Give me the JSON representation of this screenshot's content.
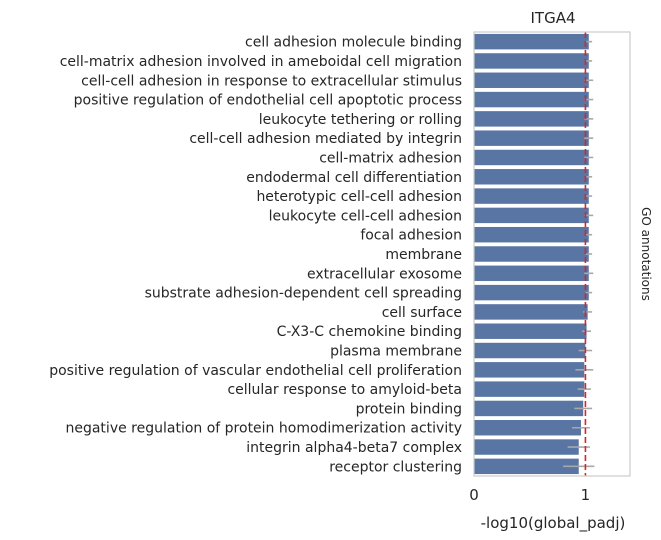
{
  "chart_data": {
    "type": "bar",
    "orientation": "horizontal",
    "title": "ITGA4",
    "xlabel": "-log10(global_padj)",
    "ylabel": "",
    "side_label": "GO annotations",
    "xlim": [
      0,
      1.4
    ],
    "xticks": [
      "0",
      "1"
    ],
    "threshold": 1.0,
    "bar_color": "#5875a4",
    "threshold_color": "#d62728",
    "categories": [
      "cell adhesion molecule binding",
      "cell-matrix adhesion involved in ameboidal cell migration",
      "cell-cell adhesion in response to extracellular stimulus",
      "positive regulation of endothelial cell apoptotic process",
      "leukocyte tethering or rolling",
      "cell-cell adhesion mediated by integrin",
      "cell-matrix adhesion",
      "endodermal cell differentiation",
      "heterotypic cell-cell adhesion",
      "leukocyte cell-cell adhesion",
      "focal adhesion",
      "membrane",
      "extracellular exosome",
      "substrate adhesion-dependent cell spreading",
      "cell surface",
      "C-X3-C chemokine binding",
      "plasma membrane",
      "positive regulation of vascular endothelial cell proliferation",
      "cellular response to amyloid-beta",
      "protein binding",
      "negative regulation of protein homodimerization activity",
      "integrin alpha4-beta7 complex",
      "receptor clustering"
    ],
    "values": [
      1.03,
      1.03,
      1.03,
      1.03,
      1.03,
      1.03,
      1.03,
      1.03,
      1.03,
      1.03,
      1.03,
      1.03,
      1.03,
      1.03,
      1.02,
      1.01,
      1.0,
      0.99,
      0.99,
      0.98,
      0.96,
      0.94,
      0.94
    ],
    "errors": [
      0.03,
      0.03,
      0.04,
      0.04,
      0.04,
      0.04,
      0.04,
      0.03,
      0.03,
      0.04,
      0.03,
      0.03,
      0.04,
      0.03,
      0.04,
      0.04,
      0.06,
      0.08,
      0.06,
      0.08,
      0.08,
      0.1,
      0.14
    ]
  }
}
